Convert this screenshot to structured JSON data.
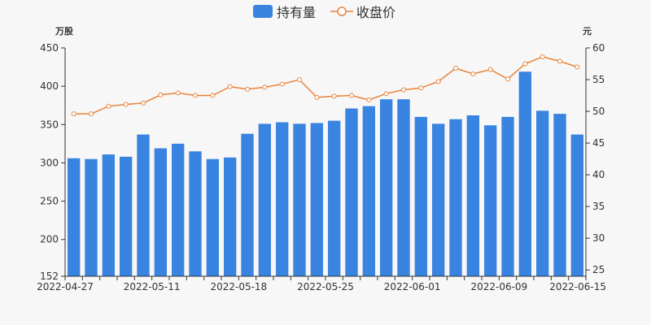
{
  "chart_data": {
    "type": "bar+line",
    "legend": {
      "placement": "top-center",
      "items": [
        "持有量",
        "收盘价"
      ]
    },
    "colors": {
      "bar": "#3a84e1",
      "line": "#e8833a",
      "axis": "#333333",
      "background": "#f7f7f7"
    },
    "x_ticks": [
      "2022-04-27",
      "2022-05-11",
      "2022-05-18",
      "2022-05-25",
      "2022-06-01",
      "2022-06-09",
      "2022-06-15"
    ],
    "x_tick_indices": [
      0,
      5,
      10,
      15,
      20,
      25,
      30
    ],
    "left_axis": {
      "unit": "万股",
      "min": 152,
      "max": 450,
      "ticks": [
        152,
        200,
        250,
        300,
        350,
        400,
        450
      ]
    },
    "right_axis": {
      "unit": "元",
      "min": 24,
      "max": 60,
      "ticks": [
        25,
        30,
        35,
        40,
        45,
        50,
        55,
        60
      ]
    },
    "grid": false,
    "series": [
      {
        "name": "持有量",
        "type": "bar",
        "axis": "left",
        "values": [
          306,
          305,
          311,
          308,
          337,
          319,
          325,
          315,
          305,
          307,
          338,
          351,
          353,
          351,
          352,
          355,
          371,
          374,
          383,
          383,
          360,
          351,
          357,
          362,
          349,
          360,
          419,
          368,
          364,
          337
        ]
      },
      {
        "name": "收盘价",
        "type": "line",
        "axis": "right",
        "values": [
          49.6,
          49.6,
          50.8,
          51.1,
          51.3,
          52.6,
          52.9,
          52.5,
          52.5,
          53.9,
          53.5,
          53.8,
          54.3,
          55.0,
          52.2,
          52.4,
          52.5,
          51.8,
          52.8,
          53.4,
          53.7,
          54.7,
          56.8,
          55.9,
          56.6,
          55.1,
          57.5,
          58.6,
          57.9,
          57.0
        ]
      }
    ]
  }
}
